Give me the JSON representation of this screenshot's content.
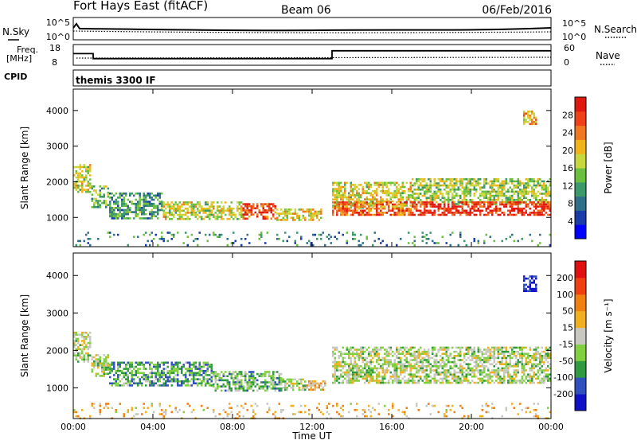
{
  "header": {
    "site": "Fort Hays East (fitACF)",
    "beam": "Beam 06",
    "date": "06/Feb/2016"
  },
  "noise_panel": {
    "left_label": "N.Sky",
    "left_ticks": [
      "10^5",
      "10^0"
    ],
    "right_ticks": [
      "10^5",
      "10^0"
    ],
    "right_label": "N.Search"
  },
  "freq_panel": {
    "left_label_1": "Freq.",
    "left_label_2": "[MHz]",
    "left_ticks": [
      "18",
      "8"
    ],
    "right_ticks": [
      "60",
      "0"
    ],
    "right_label": "Nave",
    "freq_steps": [
      [
        0,
        13.6
      ],
      [
        1.0,
        11.2
      ],
      [
        13.0,
        15.0
      ],
      [
        24,
        15.0
      ]
    ]
  },
  "cpid_panel": {
    "label": "CPID",
    "text": "themis 3300 IF"
  },
  "chart_data": [
    {
      "type": "heatmap",
      "name": "power",
      "ylabel": "Slant Range [km]",
      "xlabel": "",
      "ylim": [
        180,
        4600
      ],
      "yticks": [
        "1000",
        "2000",
        "3000",
        "4000"
      ],
      "xlim": [
        0,
        24
      ],
      "colorbar_label": "Power [dB]",
      "colorbar_ticks": [
        "28",
        "24",
        "20",
        "16",
        "12",
        "8",
        "4"
      ],
      "colors": [
        "#0000ff",
        "#1a3ca8",
        "#2f6f88",
        "#3c9a6a",
        "#6cc040",
        "#c8d83c",
        "#f0b418",
        "#f07820",
        "#f04018",
        "#e01810"
      ],
      "regions": [
        {
          "t0": 0.0,
          "t1": 0.9,
          "r0": 1700,
          "r1": 2500,
          "v": 0.55
        },
        {
          "t0": 0.9,
          "t1": 1.8,
          "r0": 1300,
          "r1": 1900,
          "v": 0.45
        },
        {
          "t0": 1.8,
          "t1": 4.5,
          "r0": 1000,
          "r1": 1700,
          "v": 0.35
        },
        {
          "t0": 4.5,
          "t1": 8.5,
          "r0": 950,
          "r1": 1450,
          "v": 0.55
        },
        {
          "t0": 8.5,
          "t1": 10.2,
          "r0": 950,
          "r1": 1400,
          "v": 0.85
        },
        {
          "t0": 10.2,
          "t1": 12.5,
          "r0": 950,
          "r1": 1250,
          "v": 0.6
        },
        {
          "t0": 13.0,
          "t1": 17.0,
          "r0": 1250,
          "r1": 2000,
          "v": 0.55
        },
        {
          "t0": 13.0,
          "t1": 17.0,
          "r0": 1100,
          "r1": 1450,
          "v": 0.8
        },
        {
          "t0": 17.0,
          "t1": 24.0,
          "r0": 1350,
          "r1": 2100,
          "v": 0.5
        },
        {
          "t0": 17.0,
          "t1": 24.0,
          "r0": 1050,
          "r1": 1450,
          "v": 0.9
        },
        {
          "t0": 22.6,
          "t1": 23.3,
          "r0": 3600,
          "r1": 4000,
          "v": 0.65
        },
        {
          "t0": 0.0,
          "t1": 24.0,
          "r0": 200,
          "r1": 600,
          "v": 0.3
        }
      ]
    },
    {
      "type": "heatmap",
      "name": "velocity",
      "ylabel": "Slant Range [km]",
      "xlabel": "Time UT",
      "ylim": [
        180,
        4600
      ],
      "yticks": [
        "1000",
        "2000",
        "3000",
        "4000"
      ],
      "xlim": [
        0,
        24
      ],
      "xticks": [
        "00:00",
        "04:00",
        "08:00",
        "12:00",
        "16:00",
        "20:00",
        "00:00"
      ],
      "colorbar_label": "Velocity [m s⁻¹]",
      "colorbar_ticks": [
        "200",
        "100",
        "50",
        "15",
        "-15",
        "-50",
        "-100",
        "-200"
      ],
      "colors": [
        "#1010c8",
        "#3050c0",
        "#2f9a40",
        "#80d040",
        "#c8c8c0",
        "#f0b020",
        "#f08010",
        "#f04010",
        "#e01010"
      ],
      "regions": [
        {
          "t0": 0.0,
          "t1": 0.9,
          "r0": 1700,
          "r1": 2500,
          "v": 0.45
        },
        {
          "t0": 0.9,
          "t1": 1.8,
          "r0": 1300,
          "r1": 1900,
          "v": 0.45
        },
        {
          "t0": 1.8,
          "t1": 7.0,
          "r0": 1050,
          "r1": 1700,
          "v": 0.3
        },
        {
          "t0": 7.0,
          "t1": 10.5,
          "r0": 950,
          "r1": 1450,
          "v": 0.35
        },
        {
          "t0": 10.5,
          "t1": 11.7,
          "r0": 950,
          "r1": 1250,
          "v": 0.45
        },
        {
          "t0": 11.7,
          "t1": 12.7,
          "r0": 950,
          "r1": 1200,
          "v": 0.6
        },
        {
          "t0": 13.0,
          "t1": 24.0,
          "r0": 1150,
          "r1": 2100,
          "v": 0.45
        },
        {
          "t0": 22.6,
          "t1": 23.3,
          "r0": 3600,
          "r1": 4000,
          "v": 0.02
        },
        {
          "t0": 0.0,
          "t1": 24.0,
          "r0": 200,
          "r1": 600,
          "v": 0.6
        }
      ]
    }
  ]
}
